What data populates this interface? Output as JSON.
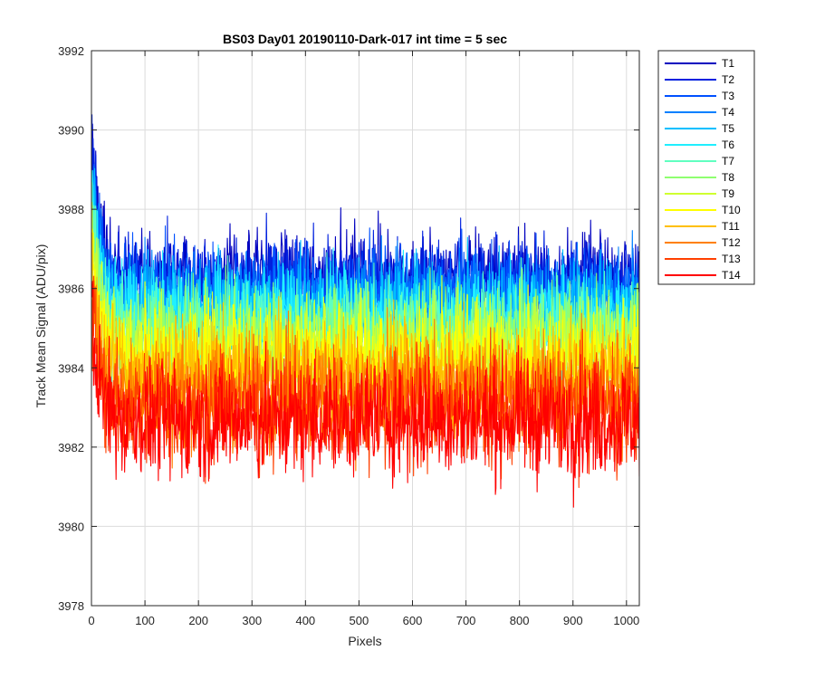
{
  "chart_data": {
    "type": "line",
    "title": "BS03 Day01 20190110-Dark-017 int time = 5 sec",
    "xlabel": "Pixels",
    "ylabel": "Track Mean Signal (ADU/pix)",
    "xlim": [
      0,
      1024
    ],
    "ylim": [
      3978,
      3992
    ],
    "x_ticks": [
      0,
      100,
      200,
      300,
      400,
      500,
      600,
      700,
      800,
      900,
      1000
    ],
    "y_ticks": [
      3978,
      3980,
      3982,
      3984,
      3986,
      3988,
      3990,
      3992
    ],
    "grid": true,
    "legend_position": "outside-top-right",
    "n_points": 1024,
    "series": [
      {
        "name": "T1",
        "color": "#0000bf",
        "mean": 3986.3,
        "noise": 0.85,
        "start": 3989.7
      },
      {
        "name": "T2",
        "color": "#0020df",
        "mean": 3986.1,
        "noise": 0.85,
        "start": 3989.5
      },
      {
        "name": "T3",
        "color": "#0050ff",
        "mean": 3985.9,
        "noise": 0.85,
        "start": 3989.2
      },
      {
        "name": "T4",
        "color": "#0080ff",
        "mean": 3985.7,
        "noise": 0.85,
        "start": 3989.0
      },
      {
        "name": "T5",
        "color": "#00bfff",
        "mean": 3985.5,
        "noise": 0.9,
        "start": 3988.8
      },
      {
        "name": "T6",
        "color": "#20efff",
        "mean": 3985.3,
        "noise": 0.9,
        "start": 3988.5
      },
      {
        "name": "T7",
        "color": "#60ffc0",
        "mean": 3985.0,
        "noise": 0.9,
        "start": 3988.2
      },
      {
        "name": "T8",
        "color": "#8fff70",
        "mean": 3984.8,
        "noise": 0.9,
        "start": 3987.8
      },
      {
        "name": "T9",
        "color": "#cfff30",
        "mean": 3984.5,
        "noise": 0.95,
        "start": 3987.4
      },
      {
        "name": "T10",
        "color": "#ffff00",
        "mean": 3984.2,
        "noise": 0.95,
        "start": 3987.0
      },
      {
        "name": "T11",
        "color": "#ffbf00",
        "mean": 3983.8,
        "noise": 1.0,
        "start": 3986.6
      },
      {
        "name": "T12",
        "color": "#ff8000",
        "mean": 3983.4,
        "noise": 1.0,
        "start": 3986.2
      },
      {
        "name": "T13",
        "color": "#ff4000",
        "mean": 3983.0,
        "noise": 1.05,
        "start": 3985.6
      },
      {
        "name": "T14",
        "color": "#ff0000",
        "mean": 3982.7,
        "noise": 1.05,
        "start": 3985.2
      }
    ]
  }
}
